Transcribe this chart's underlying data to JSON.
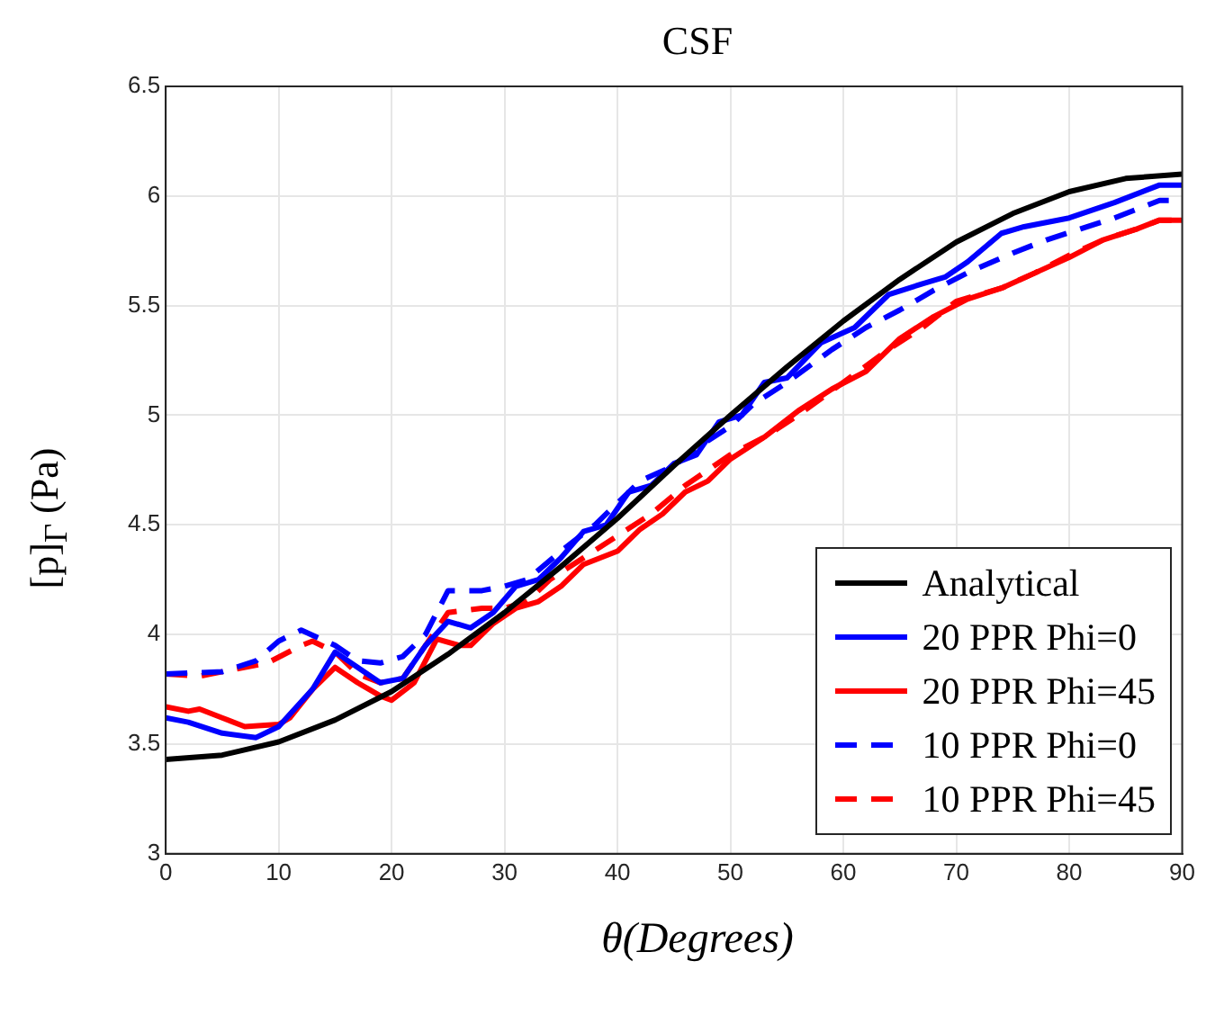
{
  "chart_data": {
    "type": "line",
    "title": "CSF",
    "xlabel": "θ(Degrees)",
    "ylabel": "[p]$_{Γ}$ (Pa)",
    "xlim": [
      0,
      90
    ],
    "xticks": [
      0,
      10,
      20,
      30,
      40,
      50,
      60,
      70,
      80,
      90
    ],
    "ylim": [
      3,
      6.5
    ],
    "yticks": [
      3,
      3.5,
      4,
      4.5,
      5,
      5.5,
      6,
      6.5
    ],
    "grid": true,
    "legend": "bottom right",
    "marker": "none",
    "series": [
      {
        "name": "Analytical",
        "color": "#000000",
        "line_style": "solid",
        "x": [
          0,
          5,
          10,
          15,
          20,
          25,
          30,
          35,
          40,
          45,
          50,
          55,
          60,
          65,
          70,
          75,
          80,
          85,
          90
        ],
        "values": [
          3.43,
          3.45,
          3.51,
          3.61,
          3.74,
          3.91,
          4.1,
          4.31,
          4.53,
          4.77,
          5.0,
          5.22,
          5.43,
          5.62,
          5.79,
          5.92,
          6.02,
          6.08,
          6.1
        ]
      },
      {
        "name": "20 PPR Phi=0",
        "color": "#0000ff",
        "line_style": "solid",
        "x": [
          0,
          2,
          5,
          8,
          10,
          13,
          15,
          17,
          19,
          21,
          23,
          25,
          27,
          29,
          31,
          33,
          35,
          37,
          39,
          41,
          43,
          45,
          47,
          49,
          51,
          53,
          55,
          58,
          61,
          64,
          67,
          69,
          71,
          74,
          76,
          80,
          84,
          88,
          90
        ],
        "values": [
          3.62,
          3.6,
          3.55,
          3.53,
          3.58,
          3.75,
          3.92,
          3.85,
          3.78,
          3.8,
          3.95,
          4.06,
          4.03,
          4.1,
          4.22,
          4.25,
          4.35,
          4.47,
          4.5,
          4.65,
          4.68,
          4.78,
          4.82,
          4.97,
          5.0,
          5.15,
          5.17,
          5.33,
          5.4,
          5.55,
          5.6,
          5.63,
          5.7,
          5.83,
          5.86,
          5.9,
          5.97,
          6.05,
          6.05
        ]
      },
      {
        "name": "20 PPR Phi=45",
        "color": "#ff0000",
        "line_style": "solid",
        "x": [
          0,
          2,
          3,
          5,
          7,
          10,
          11,
          13,
          15,
          17,
          19,
          20,
          22,
          24,
          26,
          27,
          29,
          31,
          33,
          35,
          37,
          40,
          42,
          44,
          46,
          48,
          50,
          53,
          56,
          59,
          62,
          65,
          68,
          71,
          74,
          77,
          80,
          83,
          86,
          88,
          90
        ],
        "values": [
          3.67,
          3.65,
          3.66,
          3.62,
          3.58,
          3.59,
          3.62,
          3.75,
          3.85,
          3.78,
          3.72,
          3.7,
          3.78,
          3.98,
          3.95,
          3.95,
          4.05,
          4.12,
          4.15,
          4.22,
          4.32,
          4.38,
          4.48,
          4.55,
          4.65,
          4.7,
          4.8,
          4.9,
          5.02,
          5.12,
          5.2,
          5.35,
          5.45,
          5.53,
          5.58,
          5.65,
          5.72,
          5.8,
          5.85,
          5.89,
          5.89
        ]
      },
      {
        "name": "10 PPR Phi=0",
        "color": "#0000ff",
        "line_style": "dashed",
        "x": [
          0,
          5,
          8,
          10,
          12,
          15,
          17,
          19,
          21,
          23,
          25,
          28,
          30,
          32,
          35,
          38,
          40,
          42,
          45,
          47,
          50,
          52,
          55,
          59,
          62,
          65,
          68,
          71,
          75,
          78,
          81,
          84,
          88,
          90
        ],
        "values": [
          3.82,
          3.83,
          3.88,
          3.97,
          4.02,
          3.95,
          3.88,
          3.87,
          3.9,
          4.0,
          4.2,
          4.2,
          4.22,
          4.25,
          4.38,
          4.5,
          4.6,
          4.7,
          4.77,
          4.85,
          4.95,
          5.05,
          5.15,
          5.3,
          5.4,
          5.48,
          5.57,
          5.65,
          5.74,
          5.8,
          5.85,
          5.9,
          5.98,
          5.98
        ]
      },
      {
        "name": "10 PPR Phi=45",
        "color": "#ff0000",
        "line_style": "dashed",
        "x": [
          0,
          3,
          6,
          9,
          12,
          13,
          15,
          17,
          19,
          21,
          23,
          25,
          28,
          30,
          32,
          34,
          37,
          40,
          43,
          46,
          48,
          50,
          53,
          56,
          60,
          64,
          67,
          70,
          74,
          77,
          80,
          83,
          86,
          88,
          90
        ],
        "values": [
          3.82,
          3.81,
          3.84,
          3.87,
          3.95,
          3.97,
          3.92,
          3.82,
          3.78,
          3.8,
          3.95,
          4.1,
          4.12,
          4.12,
          4.15,
          4.25,
          4.35,
          4.45,
          4.55,
          4.68,
          4.75,
          4.82,
          4.9,
          5.0,
          5.15,
          5.3,
          5.4,
          5.52,
          5.58,
          5.65,
          5.73,
          5.8,
          5.85,
          5.89,
          5.89
        ]
      }
    ]
  }
}
